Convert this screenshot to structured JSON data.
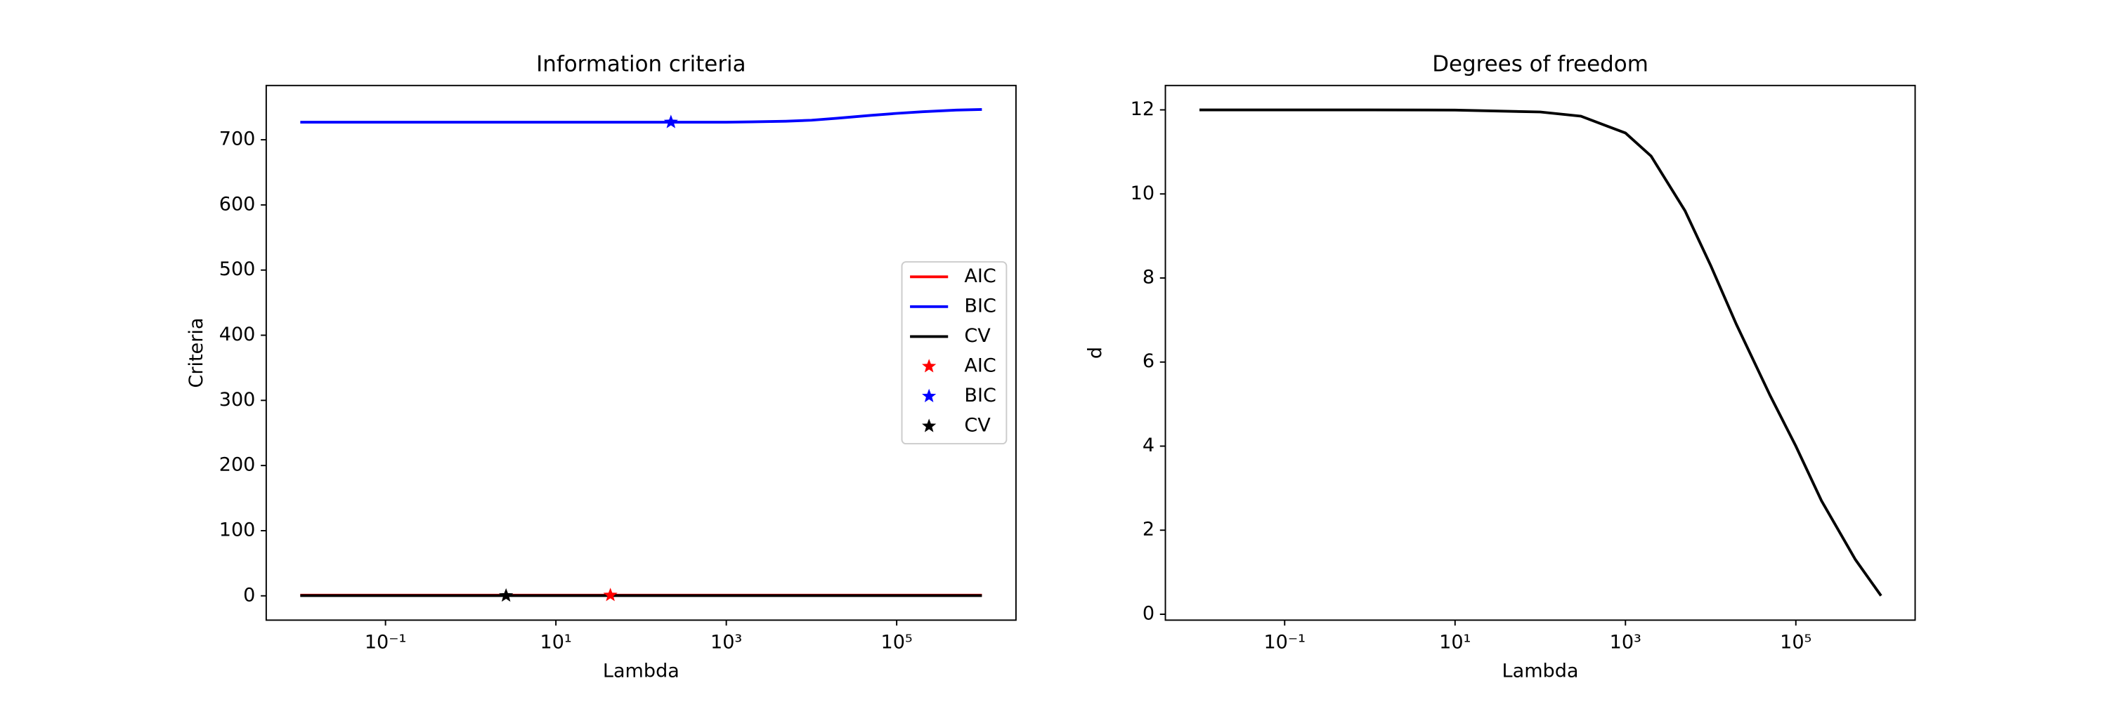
{
  "chart_data": [
    {
      "type": "line",
      "title": "Information criteria",
      "xlabel": "Lambda",
      "ylabel": "Criteria",
      "log_x": true,
      "xlim": [
        0.003981,
        2511886
      ],
      "ylim": [
        -37.3,
        783.3
      ],
      "xticks": [
        {
          "value": 0.1,
          "label": "10⁻¹"
        },
        {
          "value": 10,
          "label": "10¹"
        },
        {
          "value": 1000,
          "label": "10³"
        },
        {
          "value": 100000,
          "label": "10⁵"
        }
      ],
      "yticks": [
        0,
        100,
        200,
        300,
        400,
        500,
        600,
        700
      ],
      "legend": "center right",
      "x": [
        0.01,
        0.1,
        1,
        10,
        100,
        300,
        1000,
        2000,
        5000,
        10000,
        20000,
        50000,
        100000,
        200000,
        500000,
        1000000
      ],
      "series": [
        {
          "name": "AIC",
          "color": "#ff0000",
          "mode": "line",
          "values": [
            1,
            1,
            1,
            1,
            1,
            1,
            1,
            1,
            1,
            1,
            1,
            1,
            1,
            1,
            1,
            1
          ]
        },
        {
          "name": "BIC",
          "color": "#0000ff",
          "mode": "line",
          "values": [
            727,
            727,
            727,
            727,
            727,
            727,
            727,
            727.5,
            728.5,
            730,
            733,
            737.5,
            740.5,
            743,
            745.5,
            746.5
          ]
        },
        {
          "name": "CV",
          "color": "#000000",
          "mode": "line",
          "values": [
            0.3,
            0.3,
            0.3,
            0.3,
            0.3,
            0.3,
            0.3,
            0.3,
            0.3,
            0.3,
            0.3,
            0.3,
            0.3,
            0.3,
            0.3,
            0.3
          ]
        },
        {
          "name": "AIC",
          "color": "#ff0000",
          "mode": "star",
          "x": [
            43.6
          ],
          "values": [
            1
          ]
        },
        {
          "name": "BIC",
          "color": "#0000ff",
          "mode": "star",
          "x": [
            224
          ],
          "values": [
            727
          ]
        },
        {
          "name": "CV",
          "color": "#000000",
          "mode": "star",
          "x": [
            2.6
          ],
          "values": [
            0.3
          ]
        }
      ]
    },
    {
      "type": "line",
      "title": "Degrees of freedom",
      "xlabel": "Lambda",
      "ylabel": "d",
      "log_x": true,
      "xlim": [
        0.003981,
        2511886
      ],
      "ylim": [
        -0.14,
        12.58
      ],
      "xticks": [
        {
          "value": 0.1,
          "label": "10⁻¹"
        },
        {
          "value": 10,
          "label": "10¹"
        },
        {
          "value": 1000,
          "label": "10³"
        },
        {
          "value": 100000,
          "label": "10⁵"
        }
      ],
      "yticks": [
        0,
        2,
        4,
        6,
        8,
        10,
        12
      ],
      "x": [
        0.01,
        0.1,
        1,
        10,
        100,
        300,
        1000,
        2000,
        5000,
        10000,
        20000,
        50000,
        100000,
        200000,
        500000,
        1000000
      ],
      "series": [
        {
          "color": "#000000",
          "mode": "line",
          "values": [
            12,
            12,
            12,
            11.995,
            11.95,
            11.85,
            11.45,
            10.9,
            9.6,
            8.3,
            6.9,
            5.2,
            4.0,
            2.7,
            1.3,
            0.44
          ]
        }
      ]
    }
  ]
}
